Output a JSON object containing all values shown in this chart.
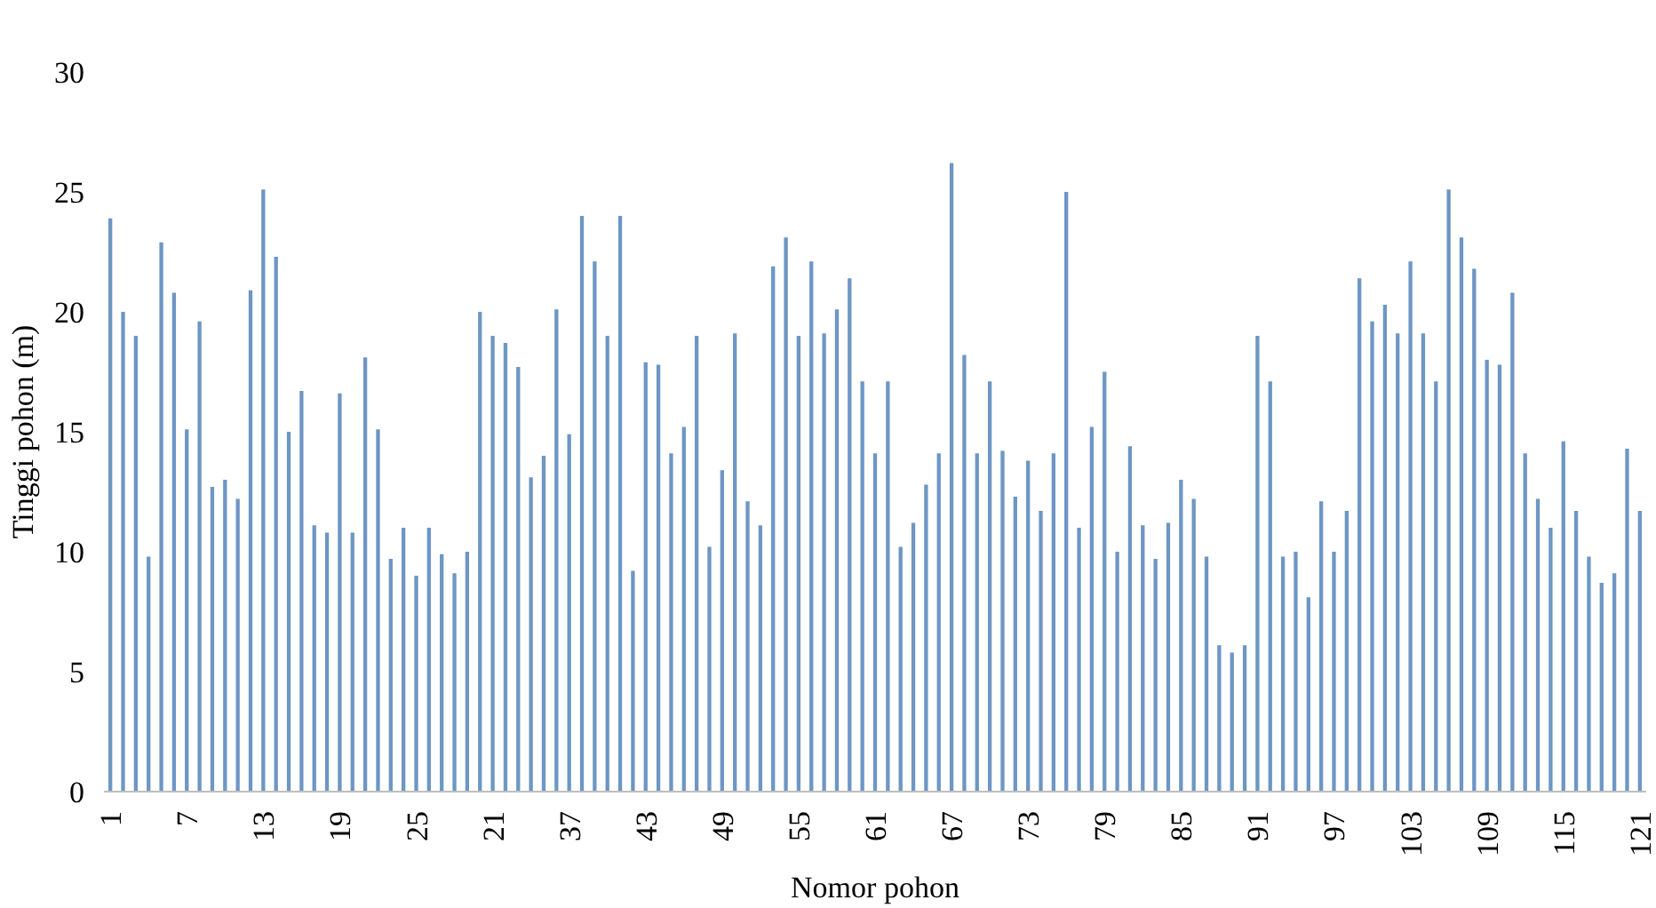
{
  "chart_data": {
    "type": "bar",
    "xlabel": "Nomor pohon",
    "ylabel": "Tinggi pohon (m)",
    "categories": [
      "1",
      null,
      null,
      null,
      null,
      null,
      "7",
      null,
      null,
      null,
      null,
      null,
      "13",
      null,
      null,
      null,
      null,
      null,
      "19",
      null,
      null,
      null,
      null,
      null,
      "25",
      null,
      null,
      null,
      null,
      null,
      "21",
      null,
      null,
      null,
      null,
      null,
      "37",
      null,
      null,
      null,
      null,
      null,
      "43",
      null,
      null,
      null,
      null,
      null,
      "49",
      null,
      null,
      null,
      null,
      null,
      "55",
      null,
      null,
      null,
      null,
      null,
      "61",
      null,
      null,
      null,
      null,
      null,
      "67",
      null,
      null,
      null,
      null,
      null,
      "73",
      null,
      null,
      null,
      null,
      null,
      "79",
      null,
      null,
      null,
      null,
      null,
      "85",
      null,
      null,
      null,
      null,
      null,
      "91",
      null,
      null,
      null,
      null,
      null,
      "97",
      null,
      null,
      null,
      null,
      null,
      "103",
      null,
      null,
      null,
      null,
      null,
      "109",
      null,
      null,
      null,
      null,
      null,
      "115",
      null,
      null,
      null,
      null,
      null,
      "121"
    ],
    "values": [
      23.9,
      20.0,
      19.0,
      9.8,
      22.9,
      20.8,
      15.1,
      19.6,
      12.7,
      13.0,
      12.2,
      20.9,
      25.1,
      22.3,
      15.0,
      16.7,
      11.1,
      10.8,
      16.6,
      10.8,
      18.1,
      15.1,
      9.7,
      11.0,
      9.0,
      11.0,
      9.9,
      9.1,
      10.0,
      20.0,
      19.0,
      18.7,
      17.7,
      13.1,
      14.0,
      20.1,
      14.9,
      24.0,
      22.1,
      19.0,
      24.0,
      9.2,
      17.9,
      17.8,
      14.1,
      15.2,
      19.0,
      10.2,
      13.4,
      19.1,
      12.1,
      11.1,
      21.9,
      23.1,
      19.0,
      22.1,
      19.1,
      20.1,
      21.4,
      17.1,
      14.1,
      17.1,
      10.2,
      11.2,
      12.8,
      14.1,
      26.2,
      18.2,
      14.1,
      17.1,
      14.2,
      12.3,
      13.8,
      11.7,
      14.1,
      25.0,
      11.0,
      15.2,
      17.5,
      10.0,
      14.4,
      11.1,
      9.7,
      11.2,
      13.0,
      12.2,
      9.8,
      6.1,
      5.8,
      6.1,
      19.0,
      17.1,
      9.8,
      10.0,
      8.1,
      12.1,
      10.0,
      11.7,
      21.4,
      19.6,
      20.3,
      19.1,
      22.1,
      19.1,
      17.1,
      25.1,
      23.1,
      21.8,
      18.0,
      17.8,
      20.8,
      14.1,
      12.2,
      11.0,
      14.6,
      11.7,
      9.8,
      8.7,
      9.1,
      14.3,
      11.7
    ],
    "color": "#6d96c4",
    "ylim": [
      0,
      30
    ],
    "yticks": [
      0,
      5,
      10,
      15,
      20,
      25,
      30
    ],
    "grid": false
  }
}
